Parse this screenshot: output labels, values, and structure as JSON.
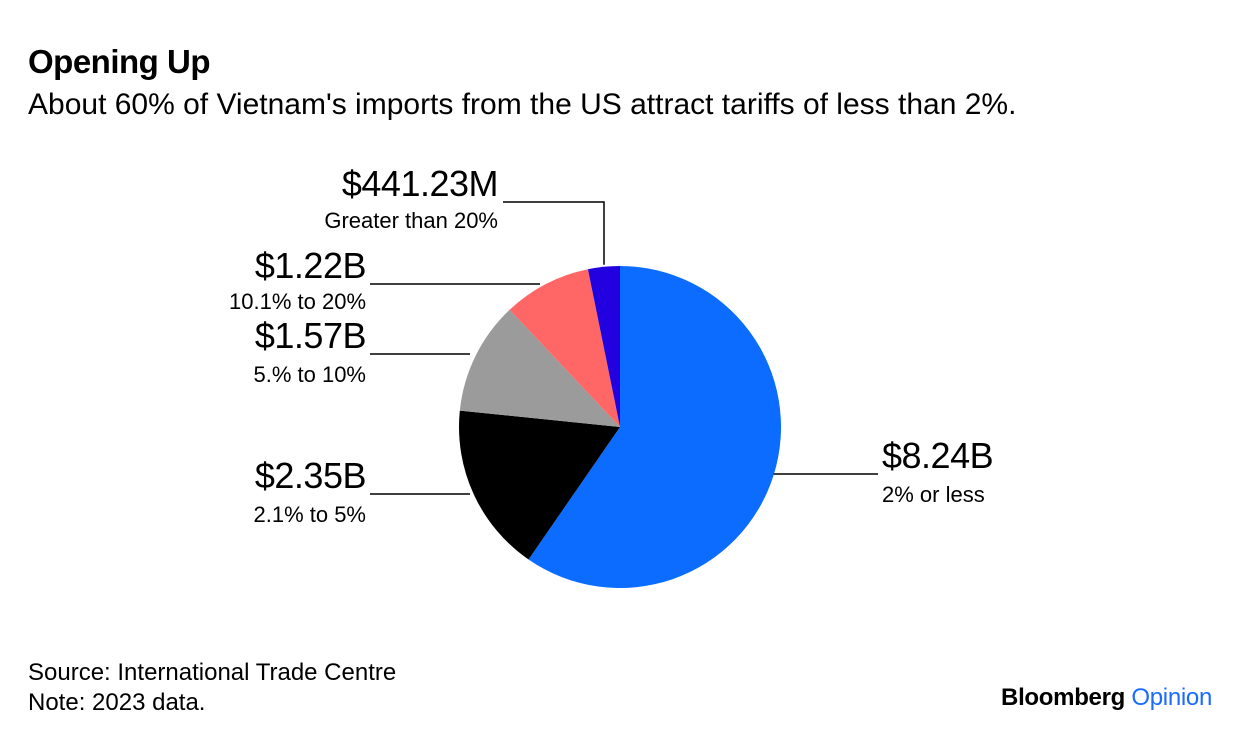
{
  "header": {
    "title": "Opening Up",
    "subtitle": "About 60% of Vietnam's imports from the US attract tariffs of less than 2%."
  },
  "chart_data": {
    "type": "pie",
    "title": "Opening Up",
    "subtitle": "About 60% of Vietnam's imports from the US attract tariffs of less than 2%.",
    "unit": "USD",
    "start": "12 o'clock, clockwise",
    "slices": [
      {
        "category": "2% or less",
        "label": "$8.24B",
        "value": 8.24,
        "color": "#0b6cff"
      },
      {
        "category": "2.1% to 5%",
        "label": "$2.35B",
        "value": 2.35,
        "color": "#000000"
      },
      {
        "category": "5.% to 10%",
        "label": "$1.57B",
        "value": 1.57,
        "color": "#9b9b9b"
      },
      {
        "category": "10.1% to 20%",
        "label": "$1.22B",
        "value": 1.22,
        "color": "#ff6666"
      },
      {
        "category": "Greater than 20%",
        "label": "$441.23M",
        "value": 0.44123,
        "color": "#2200e0"
      }
    ]
  },
  "footer": {
    "source": "Source: International Trade Centre",
    "note": "Note: 2023 data."
  },
  "brand": {
    "name": "Bloomberg",
    "section": "Opinion"
  }
}
